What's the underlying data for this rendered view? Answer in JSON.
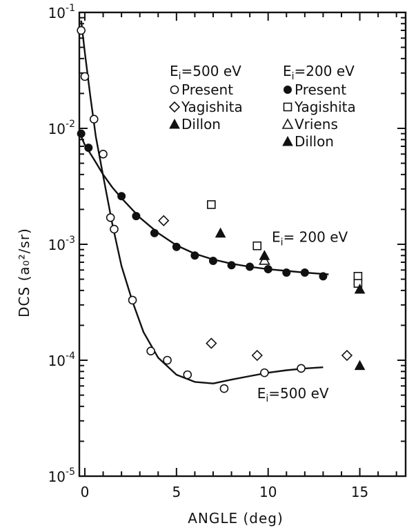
{
  "chart_data": {
    "type": "scatter",
    "xlabel": "ANGLE (deg)",
    "ylabel_main": "DCS",
    "ylabel_unit": "(a₀²/sr)",
    "xlim": [
      -0.3,
      17.5
    ],
    "ylim": [
      1e-05,
      0.1
    ],
    "yscale": "log",
    "x_ticks": [
      0,
      5,
      10,
      15
    ],
    "x_tick_labels": [
      "0",
      "5",
      "10",
      "15"
    ],
    "y_ticks": [
      1e-05,
      0.0001,
      0.001,
      0.01,
      0.1
    ],
    "y_tick_labels": [
      {
        "base": "10",
        "exp": "-5"
      },
      {
        "base": "10",
        "exp": "-4"
      },
      {
        "base": "10",
        "exp": "-3"
      },
      {
        "base": "10",
        "exp": "-2"
      },
      {
        "base": "10",
        "exp": "-1"
      }
    ],
    "legend_groups": [
      {
        "header": "E",
        "header_sub": "i",
        "header_rest": "=500 eV",
        "entries": [
          {
            "marker": "open-circle",
            "label": "Present"
          },
          {
            "marker": "open-diamond",
            "label": "Yagishita"
          },
          {
            "marker": "filled-triangle",
            "label": "Dillon"
          }
        ]
      },
      {
        "header": "E",
        "header_sub": "i",
        "header_rest": "=200 eV",
        "entries": [
          {
            "marker": "filled-circle",
            "label": "Present"
          },
          {
            "marker": "open-square",
            "label": "Yagishita"
          },
          {
            "marker": "open-triangle",
            "label": "Vriens"
          },
          {
            "marker": "filled-triangle",
            "label": "Dillon"
          }
        ]
      }
    ],
    "annotations": [
      {
        "text": "E",
        "sub": "i",
        "rest": "= 200 eV",
        "x": 10.2,
        "y": 0.00105
      },
      {
        "text": "E",
        "sub": "i",
        "rest": "=500  eV",
        "x": 9.4,
        "y": 4.7e-05
      }
    ],
    "series": [
      {
        "group": "500 eV",
        "marker": "open-circle",
        "x": [
          -0.2,
          0.0,
          0.5,
          1.0,
          1.4,
          1.6,
          2.6,
          3.6,
          4.5,
          5.6,
          7.6,
          9.8,
          11.8
        ],
        "y": [
          0.07,
          0.028,
          0.012,
          0.006,
          0.0017,
          0.00135,
          0.00033,
          0.00012,
          0.0001,
          7.5e-05,
          5.7e-05,
          7.8e-05,
          8.5e-05
        ]
      },
      {
        "group": "500 eV",
        "marker": "open-diamond",
        "x": [
          4.3,
          6.9,
          9.4,
          14.3
        ],
        "y": [
          0.0016,
          0.00014,
          0.00011,
          0.00011
        ]
      },
      {
        "group": "500 eV",
        "marker": "filled-triangle",
        "x": [
          15.0
        ],
        "y": [
          9e-05
        ]
      },
      {
        "group": "200 eV",
        "marker": "filled-circle",
        "x": [
          -0.2,
          0.2,
          2.0,
          2.8,
          3.8,
          5.0,
          6.0,
          7.0,
          8.0,
          9.0,
          10.0,
          11.0,
          12.0,
          13.0
        ],
        "y": [
          0.009,
          0.0068,
          0.0026,
          0.00175,
          0.00125,
          0.00095,
          0.0008,
          0.00072,
          0.00066,
          0.00064,
          0.00061,
          0.00057,
          0.00057,
          0.00053
        ]
      },
      {
        "group": "200 eV",
        "marker": "open-square",
        "x": [
          6.9,
          9.4,
          14.9,
          14.9
        ],
        "y": [
          0.0022,
          0.00097,
          0.00053,
          0.00046
        ]
      },
      {
        "group": "200 eV",
        "marker": "open-triangle",
        "x": [
          9.8
        ],
        "y": [
          0.00073
        ]
      },
      {
        "group": "200 eV",
        "marker": "filled-triangle",
        "x": [
          7.4,
          9.8,
          15.0
        ],
        "y": [
          0.00125,
          0.0008,
          0.00041
        ]
      }
    ],
    "curves": [
      {
        "name": "500 eV fit",
        "x": [
          -0.2,
          0.0,
          0.3,
          0.6,
          1.0,
          1.5,
          2.0,
          2.6,
          3.2,
          4.0,
          5.0,
          6.0,
          7.0,
          8.0,
          9.0,
          10.0,
          11.0,
          12.0,
          13.0
        ],
        "y": [
          0.085,
          0.045,
          0.019,
          0.0085,
          0.0039,
          0.0015,
          0.00065,
          0.00032,
          0.000175,
          0.000105,
          7.5e-05,
          6.5e-05,
          6.3e-05,
          6.8e-05,
          7.3e-05,
          7.8e-05,
          8.2e-05,
          8.5e-05,
          8.7e-05
        ]
      },
      {
        "name": "200 eV fit",
        "x": [
          -0.2,
          0.0,
          0.5,
          1.0,
          1.5,
          2.0,
          3.0,
          4.0,
          5.0,
          6.0,
          7.0,
          8.0,
          9.0,
          10.0,
          11.0,
          12.0,
          13.3
        ],
        "y": [
          0.0085,
          0.0072,
          0.0054,
          0.004,
          0.0031,
          0.0025,
          0.0017,
          0.00125,
          0.00098,
          0.00083,
          0.00074,
          0.00068,
          0.00064,
          0.00061,
          0.00059,
          0.00057,
          0.00055
        ]
      }
    ]
  }
}
